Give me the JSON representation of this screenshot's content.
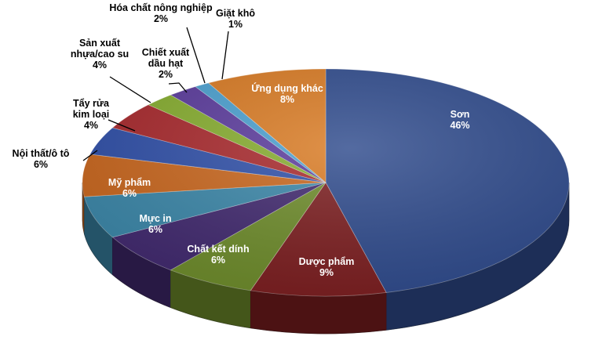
{
  "chart_data": {
    "type": "pie",
    "title": "",
    "slices": [
      {
        "label": "Sơn",
        "percent_label": "46%",
        "value": 46,
        "color": "#2e4a8c",
        "label_color": "#ffffff"
      },
      {
        "label": "Dược phẩm",
        "percent_label": "9%",
        "value": 9,
        "color": "#7b1d1f",
        "label_color": "#ffffff"
      },
      {
        "label": "Chất kết dính",
        "percent_label": "6%",
        "value": 6,
        "color": "#6d8b2a",
        "label_color": "#ffffff"
      },
      {
        "label": "Mực in",
        "percent_label": "6%",
        "value": 6,
        "color": "#40286e",
        "label_color": "#ffffff"
      },
      {
        "label": "Mỹ phẩm",
        "percent_label": "6%",
        "value": 6,
        "color": "#3a86a8",
        "label_color": "#ffffff"
      },
      {
        "label": "Nội thất/ô tô",
        "percent_label": "6%",
        "value": 6,
        "color": "#c9661d",
        "label_color": "#000000"
      },
      {
        "label": "Tẩy rửa kim loại",
        "percent_label": "4%",
        "value": 4,
        "color": "#2f4fa8",
        "label_color": "#000000"
      },
      {
        "label": "Sản xuất nhựa/cao su",
        "percent_label": "4%",
        "value": 4,
        "color": "#a8282c",
        "label_color": "#000000"
      },
      {
        "label": "Chiết xuất dầu hạt",
        "percent_label": "2%",
        "value": 2,
        "color": "#86ad2e",
        "label_color": "#000000"
      },
      {
        "label": "Hóa chất nông nghiệp",
        "percent_label": "2%",
        "value": 2,
        "color": "#5a3a9c",
        "label_color": "#000000"
      },
      {
        "label": "Giặt khô",
        "percent_label": "1%",
        "value": 1,
        "color": "#4aa0d0",
        "label_color": "#000000"
      },
      {
        "label": "Ứng dụng khác",
        "percent_label": "8%",
        "value": 8,
        "color": "#d97a22",
        "label_color": "#ffffff"
      }
    ]
  }
}
